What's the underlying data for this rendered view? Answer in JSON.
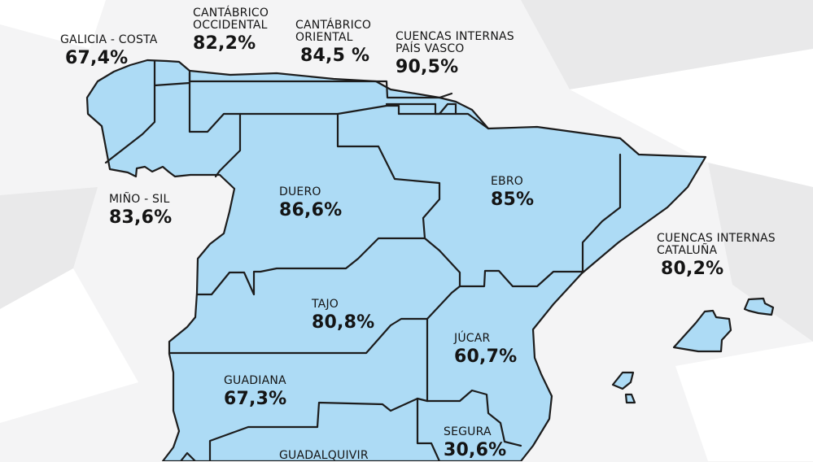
{
  "basins": [
    {
      "id": "galicia-costa",
      "name": "GALICIA - COSTA",
      "value": "67,4%"
    },
    {
      "id": "cantabrico-occidental",
      "name": "CANTÁBRICO",
      "name2": "OCCIDENTAL",
      "value": "82,2%"
    },
    {
      "id": "cantabrico-oriental",
      "name": "CANTÁBRICO",
      "name2": "ORIENTAL",
      "value": "84,5 %"
    },
    {
      "id": "pais-vasco",
      "name": "CUENCAS INTERNAS",
      "name2": "PAÍS VASCO",
      "value": "90,5%"
    },
    {
      "id": "mino-sil",
      "name": "MIÑO - SIL",
      "value": "83,6%"
    },
    {
      "id": "duero",
      "name": "DUERO",
      "value": "86,6%"
    },
    {
      "id": "ebro",
      "name": "EBRO",
      "value": "85%"
    },
    {
      "id": "cataluna",
      "name": "CUENCAS INTERNAS",
      "name2": "CATALUÑA",
      "value": "80,2%"
    },
    {
      "id": "tajo",
      "name": "TAJO",
      "value": "80,8%"
    },
    {
      "id": "jucar",
      "name": "JÚCAR",
      "value": "60,7%"
    },
    {
      "id": "guadiana",
      "name": "GUADIANA",
      "value": "67,3%"
    },
    {
      "id": "segura",
      "name": "SEGURA",
      "value": "30,6%"
    },
    {
      "id": "guadalquivir",
      "name": "GUADALQUIVIR"
    }
  ],
  "colors": {
    "region_fill": "#addbf5",
    "border": "#1c1c1c",
    "background": "#f4f4f5",
    "text": "#141414"
  }
}
